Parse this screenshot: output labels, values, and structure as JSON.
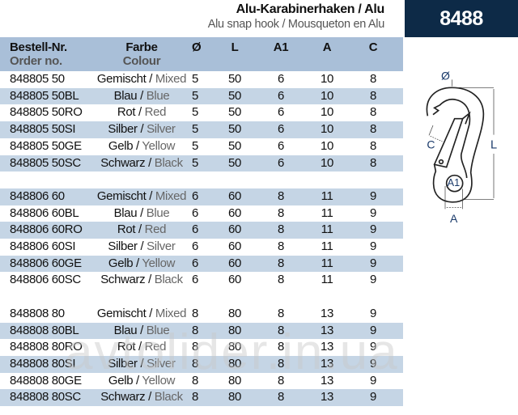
{
  "header": {
    "title": "Alu-Karabinerhaken / Alu",
    "subtitle": "Alu snap hook / Mousqueton en Alu",
    "code": "8488"
  },
  "columns": {
    "order_de": "Bestell-Nr.",
    "order_en": "Order no.",
    "colour_de": "Farbe",
    "colour_en": "Colour",
    "d": "Ø",
    "L": "L",
    "A1": "A1",
    "A": "A",
    "C": "C"
  },
  "groups": [
    [
      {
        "order": "848805 50",
        "de": "Gemischt /",
        "en": "Mixed",
        "d": "5",
        "L": "50",
        "A1": "6",
        "A": "10",
        "C": "8"
      },
      {
        "order": "848805 50BL",
        "de": "Blau /",
        "en": "Blue",
        "d": "5",
        "L": "50",
        "A1": "6",
        "A": "10",
        "C": "8"
      },
      {
        "order": "848805 50RO",
        "de": "Rot /",
        "en": "Red",
        "d": "5",
        "L": "50",
        "A1": "6",
        "A": "10",
        "C": "8"
      },
      {
        "order": "848805 50SI",
        "de": "Silber /",
        "en": "Silver",
        "d": "5",
        "L": "50",
        "A1": "6",
        "A": "10",
        "C": "8"
      },
      {
        "order": "848805 50GE",
        "de": "Gelb /",
        "en": "Yellow",
        "d": "5",
        "L": "50",
        "A1": "6",
        "A": "10",
        "C": "8"
      },
      {
        "order": "848805 50SC",
        "de": "Schwarz /",
        "en": "Black",
        "d": "5",
        "L": "50",
        "A1": "6",
        "A": "10",
        "C": "8"
      }
    ],
    [
      {
        "order": "848806 60",
        "de": "Gemischt /",
        "en": "Mixed",
        "d": "6",
        "L": "60",
        "A1": "8",
        "A": "11",
        "C": "9"
      },
      {
        "order": "848806 60BL",
        "de": "Blau /",
        "en": "Blue",
        "d": "6",
        "L": "60",
        "A1": "8",
        "A": "11",
        "C": "9"
      },
      {
        "order": "848806 60RO",
        "de": "Rot /",
        "en": "Red",
        "d": "6",
        "L": "60",
        "A1": "8",
        "A": "11",
        "C": "9"
      },
      {
        "order": "848806 60SI",
        "de": "Silber /",
        "en": "Silver",
        "d": "6",
        "L": "60",
        "A1": "8",
        "A": "11",
        "C": "9"
      },
      {
        "order": "848806 60GE",
        "de": "Gelb /",
        "en": "Yellow",
        "d": "6",
        "L": "60",
        "A1": "8",
        "A": "11",
        "C": "9"
      },
      {
        "order": "848806 60SC",
        "de": "Schwarz /",
        "en": "Black",
        "d": "6",
        "L": "60",
        "A1": "8",
        "A": "11",
        "C": "9"
      }
    ],
    [
      {
        "order": "848808 80",
        "de": "Gemischt /",
        "en": "Mixed",
        "d": "8",
        "L": "80",
        "A1": "8",
        "A": "13",
        "C": "9"
      },
      {
        "order": "848808 80BL",
        "de": "Blau /",
        "en": "Blue",
        "d": "8",
        "L": "80",
        "A1": "8",
        "A": "13",
        "C": "9"
      },
      {
        "order": "848808 80RO",
        "de": "Rot /",
        "en": "Red",
        "d": "8",
        "L": "80",
        "A1": "8",
        "A": "13",
        "C": "9"
      },
      {
        "order": "848808 80SI",
        "de": "Silber /",
        "en": "Silver",
        "d": "8",
        "L": "80",
        "A1": "8",
        "A": "13",
        "C": "9"
      },
      {
        "order": "848808 80GE",
        "de": "Gelb /",
        "en": "Yellow",
        "d": "8",
        "L": "80",
        "A1": "8",
        "A": "13",
        "C": "9"
      },
      {
        "order": "848808 80SC",
        "de": "Schwarz /",
        "en": "Black",
        "d": "8",
        "L": "80",
        "A1": "8",
        "A": "13",
        "C": "9"
      }
    ]
  ],
  "diagram": {
    "d": "Ø",
    "L": "L",
    "A1": "A1",
    "A": "A",
    "C": "C"
  },
  "watermark": "avtolider.in.ua",
  "colors": {
    "header_box": "#0d2a47",
    "header_band": "#a9bfd8",
    "stripe": "#c5d5e5",
    "english_text": "#666666",
    "dimension_labels": "#1a3a6a"
  }
}
